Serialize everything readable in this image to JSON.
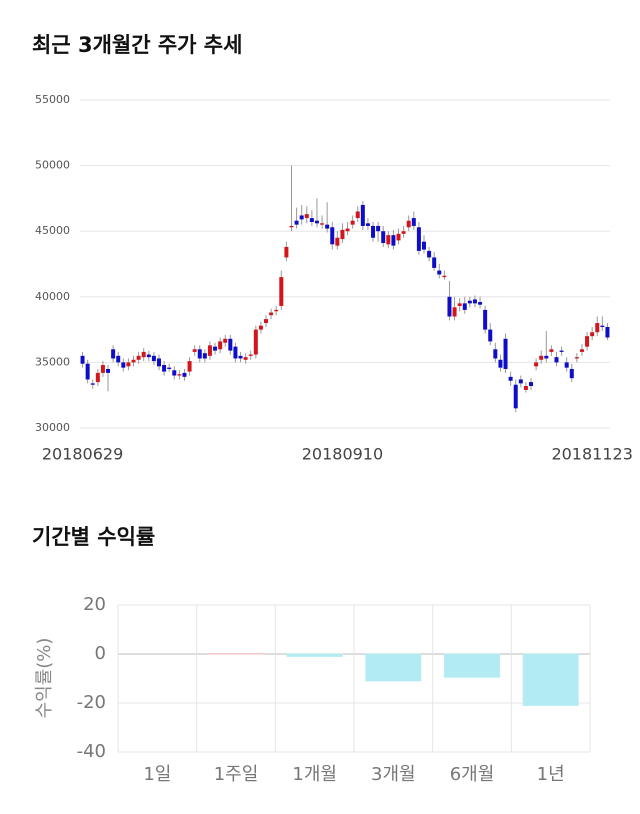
{
  "chart_data": [
    {
      "type": "candlestick",
      "title": "최근 3개월간 주가 추세",
      "categories": [
        "20180629",
        null,
        null,
        null,
        null,
        null,
        null,
        null,
        null,
        null,
        null,
        null,
        null,
        null,
        null,
        null,
        null,
        null,
        null,
        null,
        null,
        null,
        null,
        null,
        null,
        null,
        null,
        null,
        null,
        null,
        null,
        null,
        null,
        null,
        null,
        null,
        null,
        null,
        null,
        null,
        null,
        null,
        null,
        null,
        null,
        null,
        null,
        null,
        null,
        null,
        null,
        "20180910",
        null,
        null,
        null,
        null,
        null,
        null,
        null,
        null,
        null,
        null,
        null,
        null,
        null,
        null,
        null,
        null,
        null,
        null,
        null,
        null,
        null,
        null,
        null,
        null,
        null,
        null,
        null,
        null,
        null,
        null,
        null,
        null,
        null,
        null,
        null,
        null,
        null,
        null,
        null,
        null,
        null,
        null,
        null,
        null,
        null,
        null,
        null,
        null,
        "20181123",
        null,
        null,
        null
      ],
      "open": [
        35500,
        34900,
        33400,
        33500,
        34200,
        34500,
        36000,
        35500,
        35000,
        34700,
        35000,
        35200,
        35400,
        35600,
        35500,
        35300,
        34800,
        34600,
        34400,
        34000,
        34200,
        34300,
        35800,
        36000,
        35700,
        35500,
        36200,
        36000,
        36500,
        36800,
        36200,
        35500,
        35200,
        35500,
        35600,
        37500,
        38000,
        38600,
        38900,
        39300,
        43000,
        45300,
        45800,
        46200,
        46000,
        46000,
        45800,
        45500,
        45500,
        45300,
        43900,
        44400,
        45000,
        45500,
        46000,
        47000,
        45600,
        45400,
        45400,
        45000,
        44000,
        44700,
        44300,
        44800,
        45300,
        46000,
        45300,
        44200,
        43500,
        43000,
        42000,
        41500,
        40000,
        38500,
        39300,
        39500,
        39700,
        39800,
        39600,
        39000,
        37500,
        36000,
        35200,
        36800,
        33900,
        33300,
        33700,
        32900,
        33500,
        34700,
        35200,
        35500,
        35800,
        35400,
        35900,
        35000,
        34500,
        35300,
        35800,
        36200,
        37000,
        37300,
        37800,
        37700
      ],
      "high": [
        35800,
        35200,
        33700,
        34500,
        35100,
        34800,
        36300,
        35800,
        35300,
        35300,
        35500,
        35800,
        36100,
        35900,
        35800,
        35600,
        35100,
        34900,
        34700,
        34400,
        34500,
        35400,
        36300,
        36300,
        36000,
        36600,
        36500,
        36900,
        37100,
        37100,
        36500,
        35800,
        35700,
        35900,
        37800,
        38100,
        38600,
        39100,
        39300,
        42000,
        44200,
        50000,
        46800,
        47000,
        46900,
        46600,
        47500,
        46200,
        47200,
        45700,
        45000,
        45600,
        45700,
        46200,
        46900,
        47300,
        46000,
        45700,
        45700,
        45400,
        45000,
        45100,
        45200,
        45400,
        46200,
        46500,
        45700,
        44700,
        43800,
        43400,
        42500,
        42000,
        41200,
        40000,
        39900,
        40000,
        40000,
        40100,
        40000,
        39300,
        38000,
        36500,
        35600,
        37200,
        34300,
        33700,
        34000,
        33500,
        33800,
        35300,
        35900,
        37400,
        36300,
        35800,
        36200,
        35400,
        34900,
        35700,
        36400,
        37300,
        37700,
        38500,
        38500,
        38000
      ],
      "low": [
        34600,
        33400,
        33000,
        33200,
        33900,
        32800,
        35000,
        34700,
        34300,
        34400,
        34700,
        34900,
        35100,
        35100,
        34800,
        34400,
        34000,
        34300,
        33700,
        33700,
        33600,
        34000,
        35500,
        35000,
        35000,
        35200,
        35600,
        35700,
        36200,
        35600,
        35000,
        35000,
        34900,
        35200,
        35300,
        37200,
        37700,
        38300,
        38600,
        39000,
        42700,
        45000,
        45200,
        45500,
        45600,
        45400,
        45300,
        45200,
        44900,
        43600,
        43600,
        44100,
        44700,
        45200,
        45700,
        45100,
        45100,
        44200,
        44200,
        43800,
        43700,
        43600,
        44000,
        44500,
        45000,
        45100,
        43200,
        43300,
        42700,
        42000,
        41400,
        41300,
        38200,
        38200,
        38900,
        38700,
        39200,
        39200,
        39100,
        37200,
        36300,
        35000,
        34300,
        34200,
        33200,
        31200,
        33100,
        32700,
        32900,
        34400,
        34900,
        35000,
        35500,
        34700,
        35500,
        34300,
        33500,
        35000,
        35500,
        35900,
        36700,
        37000,
        37400,
        36700
      ],
      "close": [
        34900,
        33700,
        33300,
        34200,
        34800,
        34200,
        35300,
        35000,
        34600,
        35000,
        35200,
        35500,
        35800,
        35400,
        35100,
        34700,
        34300,
        34500,
        34000,
        34100,
        33900,
        35100,
        36000,
        35300,
        35300,
        36300,
        35900,
        36600,
        36800,
        35900,
        35300,
        35300,
        35400,
        35600,
        37500,
        37800,
        38300,
        38800,
        39000,
        41500,
        43800,
        45400,
        45500,
        45900,
        46300,
        45700,
        45600,
        45600,
        45200,
        44000,
        44500,
        45100,
        45200,
        45800,
        46500,
        45400,
        45400,
        44500,
        45000,
        44100,
        44700,
        43900,
        44800,
        45000,
        45800,
        45400,
        43500,
        43600,
        43000,
        42200,
        41700,
        41600,
        38500,
        39200,
        39500,
        39000,
        39500,
        39500,
        39400,
        37500,
        36600,
        35300,
        34600,
        34500,
        33600,
        31500,
        33400,
        33200,
        33200,
        35000,
        35500,
        35300,
        36000,
        35000,
        35800,
        34600,
        33800,
        35400,
        36000,
        37000,
        37300,
        38000,
        37700,
        36900
      ],
      "up_color": "#d3161b",
      "down_color": "#0e0ec8",
      "ylim": [
        30000,
        55000
      ],
      "yticks": [
        30000,
        35000,
        40000,
        45000,
        50000,
        55000
      ],
      "grid": true
    },
    {
      "type": "bar",
      "title": "기간별 수익률",
      "y_label": "수익률(%)",
      "categories": [
        "1일",
        "1주일",
        "1개월",
        "3개월",
        "6개월",
        "1년"
      ],
      "values": [
        0,
        0.2,
        -1.0,
        -11,
        -9.5,
        -21
      ],
      "colors": [
        "#b2ebf2",
        "#f4c2c2",
        "#b2ebf2",
        "#b2ebf2",
        "#b2ebf2",
        "#b2ebf2"
      ],
      "ylim": [
        -40,
        20
      ],
      "yticks": [
        -40,
        -20,
        0,
        20
      ],
      "grid": true
    }
  ]
}
